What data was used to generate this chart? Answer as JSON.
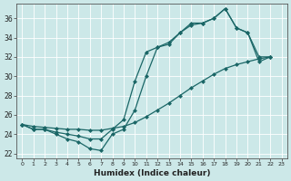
{
  "xlabel": "Humidex (Indice chaleur)",
  "bg_color": "#cce8e8",
  "grid_color": "#b8d8d8",
  "line_color": "#1a6666",
  "xlim": [
    -0.5,
    23.5
  ],
  "ylim": [
    21.5,
    37.5
  ],
  "xticks": [
    0,
    1,
    2,
    3,
    4,
    5,
    6,
    7,
    8,
    9,
    10,
    11,
    12,
    13,
    14,
    15,
    16,
    17,
    18,
    19,
    20,
    21,
    22,
    23
  ],
  "yticks": [
    22,
    24,
    26,
    28,
    30,
    32,
    34,
    36
  ],
  "series": [
    {
      "x": [
        0,
        1,
        2,
        3,
        4,
        5,
        6,
        7,
        8,
        9,
        10,
        11,
        12,
        13,
        14,
        15,
        16,
        17,
        18,
        19,
        20,
        21,
        22
      ],
      "y": [
        25.0,
        24.5,
        24.5,
        24.0,
        23.5,
        23.2,
        22.5,
        22.3,
        24.0,
        24.5,
        26.5,
        30.0,
        33.0,
        33.3,
        34.5,
        35.5,
        35.5,
        36.0,
        37.0,
        35.0,
        34.5,
        31.5,
        32.0
      ]
    },
    {
      "x": [
        0,
        1,
        2,
        3,
        4,
        5,
        6,
        7,
        8,
        9,
        10,
        11,
        12,
        13,
        14,
        15,
        16,
        17,
        18,
        19,
        20,
        21,
        22
      ],
      "y": [
        25.0,
        24.8,
        24.7,
        24.6,
        24.5,
        24.5,
        24.4,
        24.4,
        24.6,
        24.8,
        25.2,
        25.8,
        26.5,
        27.2,
        28.0,
        28.8,
        29.5,
        30.2,
        30.8,
        31.2,
        31.5,
        31.8,
        32.0
      ]
    },
    {
      "x": [
        0,
        1,
        2,
        3,
        4,
        5,
        6,
        7,
        8,
        9,
        10,
        11,
        12,
        13,
        14,
        15,
        16,
        17,
        18,
        19,
        20,
        21,
        22
      ],
      "y": [
        25.0,
        24.5,
        24.5,
        24.2,
        24.0,
        23.8,
        23.5,
        23.5,
        24.5,
        25.5,
        29.5,
        32.5,
        33.0,
        33.5,
        34.5,
        35.3,
        35.5,
        36.0,
        37.0,
        35.0,
        34.5,
        32.0,
        32.0
      ]
    }
  ]
}
